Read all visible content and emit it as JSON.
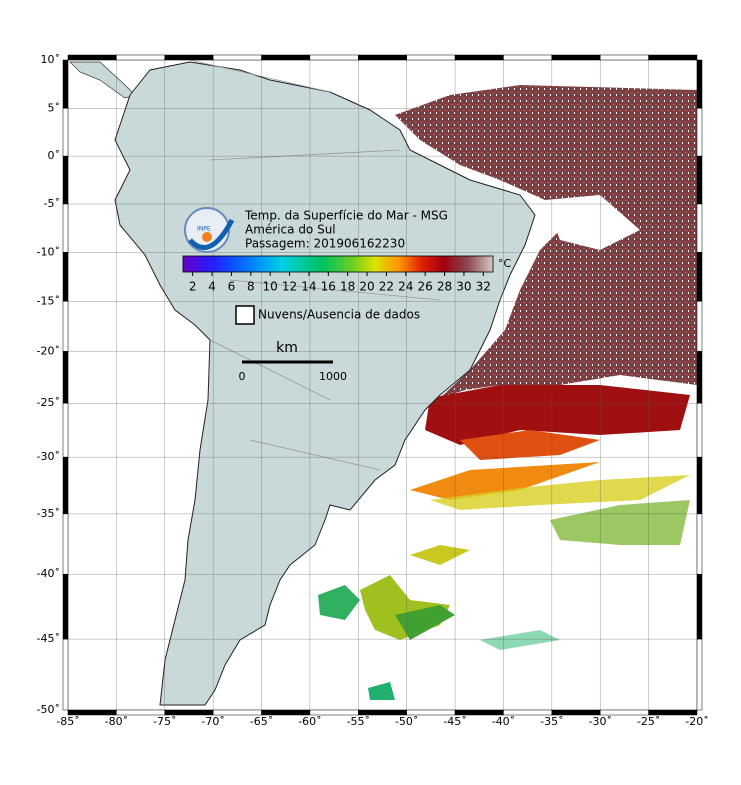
{
  "title": [
    "Temp. da Superfície do Mar - MSG",
    "América do Sul",
    "Passagem: 201906162230"
  ],
  "logo": "INPE",
  "colorbar": {
    "unit": "°C",
    "range": [
      1,
      33
    ],
    "ticks": [
      2,
      4,
      6,
      8,
      10,
      12,
      14,
      16,
      18,
      20,
      22,
      24,
      26,
      28,
      30,
      32
    ]
  },
  "legend": {
    "label": "Nuvens/Ausencia de dados"
  },
  "scale": {
    "unit": "km",
    "ticks": [
      0,
      1000
    ]
  },
  "map": {
    "xlim": [
      -85,
      -20
    ],
    "ylim": [
      -50,
      10
    ],
    "xticks": [
      {
        "value": -85,
        "label": "-85˚"
      },
      {
        "value": -80,
        "label": "-80˚"
      },
      {
        "value": -75,
        "label": "-75˚"
      },
      {
        "value": -70,
        "label": "-70˚"
      },
      {
        "value": -65,
        "label": "-65˚"
      },
      {
        "value": -60,
        "label": "-60˚"
      },
      {
        "value": -55,
        "label": "-55˚"
      },
      {
        "value": -50,
        "label": "-50˚"
      },
      {
        "value": -45,
        "label": "-45˚"
      },
      {
        "value": -40,
        "label": "-40˚"
      },
      {
        "value": -35,
        "label": "-35˚"
      },
      {
        "value": -30,
        "label": "-30˚"
      },
      {
        "value": -25,
        "label": "-25˚"
      },
      {
        "value": -20,
        "label": "-20˚"
      }
    ],
    "yticks": [
      {
        "value": 10,
        "label": "10˚"
      },
      {
        "value": 5,
        "label": "5˚"
      },
      {
        "value": 0,
        "label": "0˚"
      },
      {
        "value": -5,
        "label": "-5˚"
      },
      {
        "value": -10,
        "label": "-10˚"
      },
      {
        "value": -15,
        "label": "-15˚"
      },
      {
        "value": -20,
        "label": "-20˚"
      },
      {
        "value": -25,
        "label": "-25˚"
      },
      {
        "value": -30,
        "label": "-30˚"
      },
      {
        "value": -35,
        "label": "-35˚"
      },
      {
        "value": -40,
        "label": "-40˚"
      },
      {
        "value": -45,
        "label": "-45˚"
      },
      {
        "value": -50,
        "label": "-50˚"
      }
    ]
  }
}
